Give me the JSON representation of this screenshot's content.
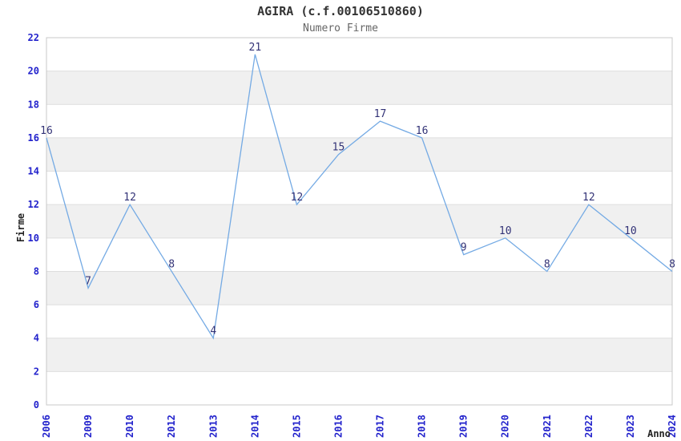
{
  "chart_data": {
    "type": "line",
    "title": "AGIRA (c.f.00106510860)",
    "subtitle": "Numero Firme",
    "xlabel": "Anno",
    "ylabel": "Firme",
    "categories": [
      "2006",
      "2009",
      "2010",
      "2012",
      "2013",
      "2014",
      "2015",
      "2016",
      "2017",
      "2018",
      "2019",
      "2020",
      "2021",
      "2022",
      "2023",
      "2024"
    ],
    "values": [
      16,
      7,
      12,
      8,
      4,
      21,
      12,
      15,
      17,
      16,
      9,
      10,
      8,
      12,
      10,
      8
    ],
    "ylim": [
      0,
      22
    ],
    "ytick_step": 2,
    "grid": "horizontal",
    "alternating_bands": true,
    "legend": "none",
    "point_labels": true,
    "colors": {
      "line": "#74aae4",
      "tick_label": "#2222cc",
      "point_label": "#333377",
      "title": "#333333",
      "subtitle": "#666666",
      "axis_label": "#222222",
      "band": "#f0f0f0",
      "gridline": "#dedede",
      "border": "#c8c8c8",
      "background": "#ffffff"
    }
  }
}
